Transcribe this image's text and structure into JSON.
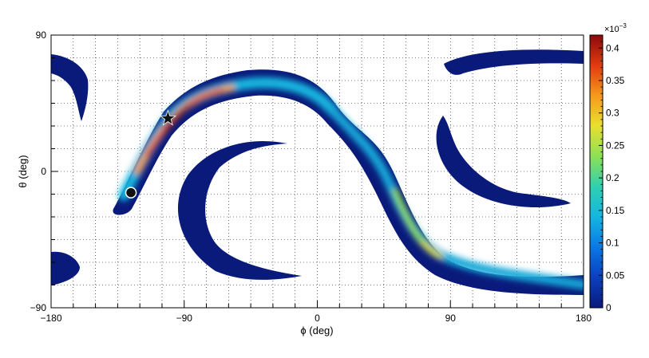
{
  "chart_data": {
    "type": "heatmap",
    "xlabel": "ϕ (deg)",
    "ylabel": "θ (deg)",
    "xlim": [
      -180,
      180
    ],
    "ylim": [
      -90,
      90
    ],
    "xticks": [
      {
        "value": -180,
        "label": "−180"
      },
      {
        "value": -90,
        "label": "−90"
      },
      {
        "value": 0,
        "label": "0"
      },
      {
        "value": 90,
        "label": "90"
      },
      {
        "value": 180,
        "label": "180"
      }
    ],
    "yticks": [
      {
        "value": 90,
        "label": "90"
      },
      {
        "value": 0,
        "label": "0"
      },
      {
        "value": -90,
        "label": "−90"
      }
    ],
    "grid": true,
    "grid_step_deg": 15,
    "colorbar": {
      "min": 0,
      "max": 0.42,
      "multiplier": "×10",
      "exponent": "−3",
      "ticks": [
        {
          "value": 0,
          "label": "0"
        },
        {
          "value": 0.05,
          "label": "0.05"
        },
        {
          "value": 0.1,
          "label": "0.1"
        },
        {
          "value": 0.15,
          "label": "0.15"
        },
        {
          "value": 0.2,
          "label": "0.2"
        },
        {
          "value": 0.25,
          "label": "0.25"
        },
        {
          "value": 0.3,
          "label": "0.3"
        },
        {
          "value": 0.35,
          "label": "0.35"
        },
        {
          "value": 0.4,
          "label": "0.4"
        }
      ],
      "colormap": "kBird/jet-like",
      "colors": [
        "#0a1a7a",
        "#0b3fbf",
        "#0a78e6",
        "#14b6e0",
        "#2fd0b0",
        "#8ee055",
        "#e8e030",
        "#f59a1a",
        "#e23a10",
        "#8a0a0a"
      ]
    },
    "markers": [
      {
        "type": "star",
        "phi": -101,
        "theta": 35,
        "color": "#111111"
      },
      {
        "type": "circle",
        "phi": -126,
        "theta": -14,
        "color": "#111111"
      }
    ],
    "regions": [
      {
        "name": "main-arc",
        "peak": 0.42,
        "points": [
          [
            -126,
            -14
          ],
          [
            -118,
            2
          ],
          [
            -110,
            18
          ],
          [
            -101,
            35
          ],
          [
            -90,
            45
          ],
          [
            -75,
            53
          ],
          [
            -60,
            58
          ],
          [
            -45,
            58
          ],
          [
            -30,
            53
          ],
          [
            -15,
            43
          ],
          [
            0,
            34
          ],
          [
            12,
            28
          ],
          [
            22,
            22
          ],
          [
            30,
            10
          ],
          [
            38,
            -5
          ],
          [
            45,
            -18
          ],
          [
            52,
            -32
          ],
          [
            58,
            -45
          ],
          [
            65,
            -54
          ],
          [
            75,
            -60
          ],
          [
            90,
            -67
          ],
          [
            110,
            -71
          ],
          [
            135,
            -72
          ],
          [
            160,
            -72
          ],
          [
            180,
            -72
          ]
        ],
        "width_deg": 14
      },
      {
        "name": "left-crescent",
        "peak": 0.01
      },
      {
        "name": "right-crescent",
        "peak": 0.01
      },
      {
        "name": "top-right-band",
        "peak": 0.01
      },
      {
        "name": "top-left-lobe",
        "peak": 0.01
      },
      {
        "name": "bottom-left-lobe",
        "peak": 0.01
      }
    ]
  }
}
